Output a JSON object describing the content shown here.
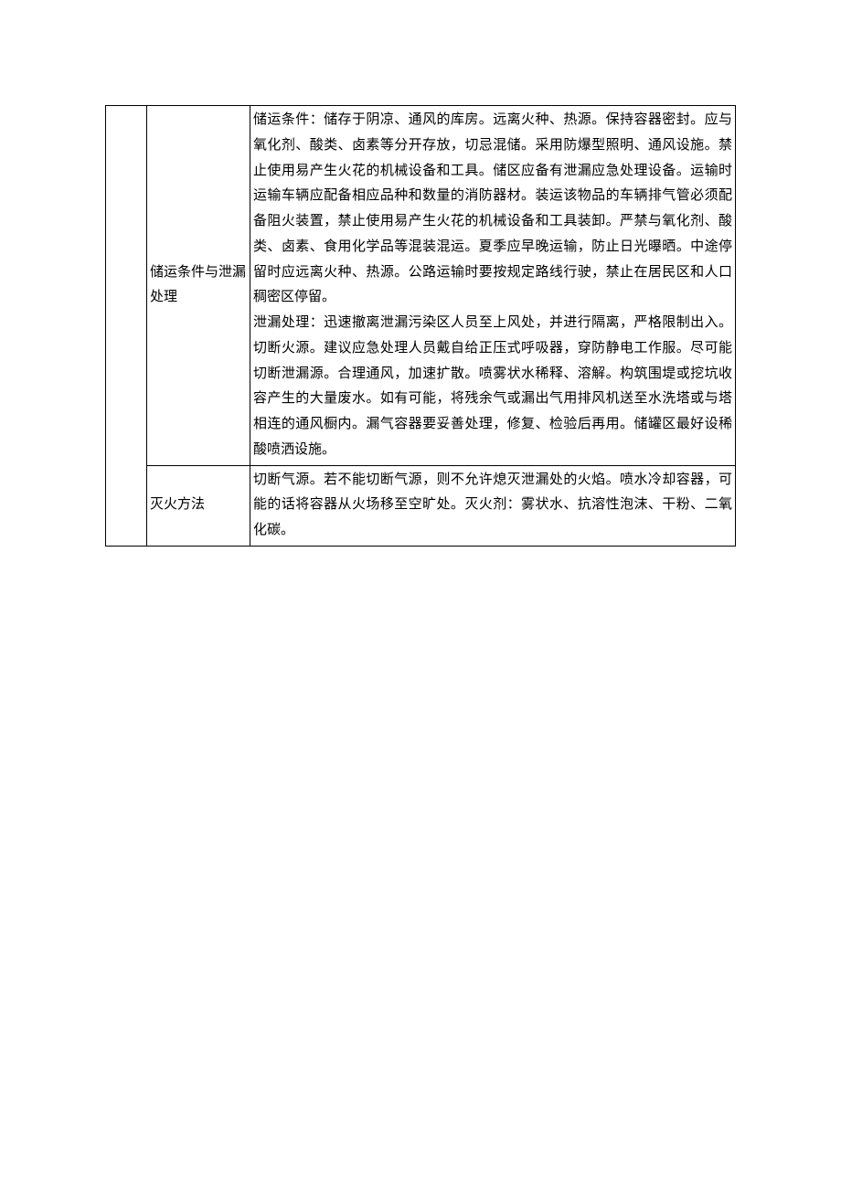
{
  "rows": [
    {
      "label_name": "row-label-storage",
      "label": "储运条件与泄漏处理",
      "content_name": "row-content-storage",
      "paragraphs": [
        "储运条件：储存于阴凉、通风的库房。远离火种、热源。保持容器密封。应与氧化剂、酸类、卤素等分开存放，切忌混储。采用防爆型照明、通风设施。禁止使用易产生火花的机械设备和工具。储区应备有泄漏应急处理设备。运输时运输车辆应配备相应品种和数量的消防器材。装运该物品的车辆排气管必须配备阻火装置，禁止使用易产生火花的机械设备和工具装卸。严禁与氧化剂、酸类、卤素、食用化学品等混装混运。夏季应早晚运输，防止日光曝晒。中途停留时应远离火种、热源。公路运输时要按规定路线行驶，禁止在居民区和人口稠密区停留。",
        "泄漏处理：迅速撤离泄漏污染区人员至上风处，并进行隔离，严格限制出入。切断火源。建议应急处理人员戴自给正压式呼吸器，穿防静电工作服。尽可能切断泄漏源。合理通风，加速扩散。喷雾状水稀释、溶解。构筑围堤或挖坑收容产生的大量废水。如有可能，将残余气或漏出气用排风机送至水洗塔或与塔相连的通风橱内。漏气容器要妥善处理，修复、检验后再用。储罐区最好设稀酸喷洒设施。"
      ]
    },
    {
      "label_name": "row-label-fire",
      "label": "灭火方法",
      "content_name": "row-content-fire",
      "paragraphs": [
        "切断气源。若不能切断气源，则不允许熄灭泄漏处的火焰。喷水冷却容器，可能的话将容器从火场移至空旷处。灭火剂：雾状水、抗溶性泡沫、干粉、二氧化碳。"
      ]
    }
  ]
}
